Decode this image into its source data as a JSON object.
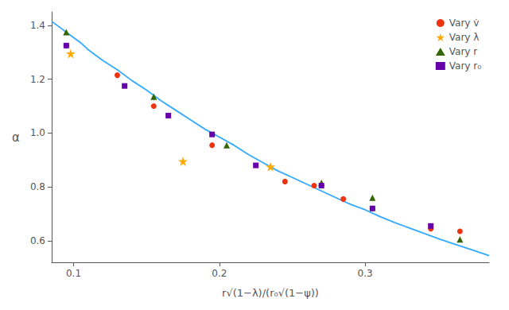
{
  "chart_data": {
    "type": "scatter",
    "xlabel": "r√(1−λ)/(r₀√(1−ψ))",
    "ylabel": "α",
    "xlim": [
      0.085,
      0.385
    ],
    "ylim": [
      0.52,
      1.45
    ],
    "xticks": [
      0.1,
      0.2,
      0.3
    ],
    "yticks": [
      0.6,
      0.8,
      {
        "value": 1.0,
        "label": "1.0"
      },
      1.2,
      1.4
    ],
    "grid": false,
    "legend": "upper right",
    "series": [
      {
        "type": "line",
        "color": "#33aaff",
        "x": [
          0.085,
          0.09,
          0.095,
          0.1,
          0.105,
          0.11,
          0.12,
          0.13,
          0.14,
          0.15,
          0.16,
          0.17,
          0.18,
          0.19,
          0.2,
          0.21,
          0.22,
          0.23,
          0.24,
          0.25,
          0.26,
          0.27,
          0.28,
          0.29,
          0.3,
          0.31,
          0.32,
          0.33,
          0.34,
          0.35,
          0.36,
          0.37,
          0.375,
          0.385
        ],
        "values": [
          1.415,
          1.395,
          1.375,
          1.355,
          1.335,
          1.31,
          1.27,
          1.235,
          1.195,
          1.16,
          1.12,
          1.085,
          1.05,
          1.015,
          0.985,
          0.955,
          0.92,
          0.89,
          0.86,
          0.835,
          0.81,
          0.785,
          0.76,
          0.735,
          0.715,
          0.69,
          0.668,
          0.648,
          0.628,
          0.608,
          0.59,
          0.572,
          0.563,
          0.545
        ]
      },
      {
        "name": "Vary v̇",
        "type": "scatter",
        "marker": "circle",
        "color": "#ee3311",
        "x": [
          0.095,
          0.13,
          0.155,
          0.195,
          0.245,
          0.265,
          0.285,
          0.305,
          0.345,
          0.365
        ],
        "values": [
          1.325,
          1.215,
          1.1,
          0.955,
          0.82,
          0.805,
          0.755,
          0.72,
          0.645,
          0.635
        ]
      },
      {
        "name": "Vary λ",
        "type": "scatter",
        "marker": "star",
        "color": "#ffaa00",
        "x": [
          0.098,
          0.175,
          0.235
        ],
        "values": [
          1.295,
          0.895,
          0.875
        ]
      },
      {
        "name": "Vary r",
        "type": "scatter",
        "marker": "triangle",
        "color": "#336600",
        "x": [
          0.095,
          0.155,
          0.205,
          0.27,
          0.305,
          0.365
        ],
        "values": [
          1.375,
          1.135,
          0.955,
          0.815,
          0.76,
          0.605
        ]
      },
      {
        "name": "Vary r₀",
        "type": "scatter",
        "marker": "square",
        "color": "#6600aa",
        "x": [
          0.095,
          0.135,
          0.165,
          0.195,
          0.225,
          0.27,
          0.305,
          0.345
        ],
        "values": [
          1.325,
          1.175,
          1.065,
          0.995,
          0.88,
          0.805,
          0.72,
          0.655
        ]
      }
    ]
  }
}
